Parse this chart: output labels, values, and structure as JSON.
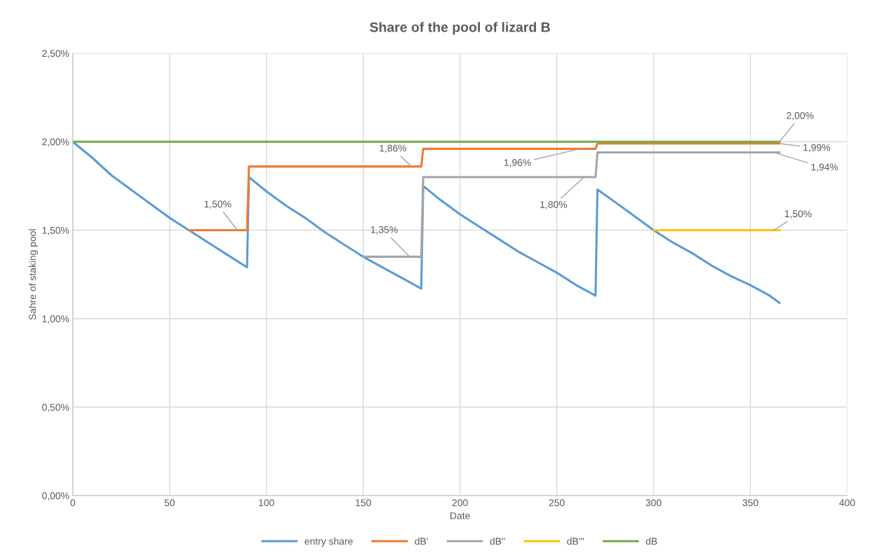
{
  "chart_data": {
    "type": "line",
    "title": "Share of the pool of lizard B",
    "xlabel": "Date",
    "ylabel": "Sahre of staking pool",
    "xlim": [
      0,
      400
    ],
    "xticks": [
      0,
      50,
      100,
      150,
      200,
      250,
      300,
      350,
      400
    ],
    "ylim": [
      0,
      2.5
    ],
    "yticks": [
      {
        "value": 0,
        "label": "0,00%"
      },
      {
        "value": 0.5,
        "label": "0,50%"
      },
      {
        "value": 1,
        "label": "1,00%"
      },
      {
        "value": 1.5,
        "label": "1,50%"
      },
      {
        "value": 2,
        "label": "2,00%"
      },
      {
        "value": 2.5,
        "label": "2,50%"
      }
    ],
    "grid": true,
    "legend": "bottom",
    "marker": "none",
    "line_style": "solid",
    "series": [
      {
        "name": "entry share",
        "color": "#5b9bd5",
        "x": [
          0,
          10,
          20,
          30,
          40,
          50,
          60,
          70,
          80,
          90,
          91,
          100,
          110,
          120,
          130,
          140,
          150,
          160,
          170,
          180,
          181,
          190,
          200,
          210,
          220,
          230,
          240,
          250,
          260,
          270,
          271,
          280,
          290,
          300,
          310,
          320,
          330,
          340,
          350,
          360,
          365
        ],
        "values": [
          2.0,
          1.91,
          1.81,
          1.73,
          1.65,
          1.57,
          1.5,
          1.43,
          1.36,
          1.29,
          1.8,
          1.72,
          1.64,
          1.57,
          1.49,
          1.42,
          1.35,
          1.29,
          1.23,
          1.17,
          1.75,
          1.67,
          1.59,
          1.52,
          1.45,
          1.38,
          1.32,
          1.26,
          1.19,
          1.13,
          1.73,
          1.66,
          1.58,
          1.5,
          1.43,
          1.37,
          1.3,
          1.24,
          1.19,
          1.13,
          1.09
        ]
      },
      {
        "name": "dB'",
        "color": "#ed7d31",
        "x": [
          60,
          90,
          91,
          180,
          181,
          270,
          271,
          365
        ],
        "values": [
          1.5,
          1.5,
          1.86,
          1.86,
          1.96,
          1.96,
          1.99,
          1.99
        ]
      },
      {
        "name": "dB''",
        "color": "#a5a5a5",
        "x": [
          150,
          180,
          181,
          270,
          271,
          365
        ],
        "values": [
          1.35,
          1.35,
          1.8,
          1.8,
          1.94,
          1.94
        ]
      },
      {
        "name": "dB'''",
        "color": "#ffc000",
        "x": [
          300,
          365
        ],
        "values": [
          1.5,
          1.5
        ]
      },
      {
        "name": "dB",
        "color": "#70ad47",
        "x": [
          0,
          365
        ],
        "values": [
          2.0,
          2.0
        ]
      }
    ],
    "annotations": [
      {
        "text": "1,50%",
        "x": 85,
        "y": 1.5
      },
      {
        "text": "1,86%",
        "x": 175,
        "y": 1.86
      },
      {
        "text": "1,35%",
        "x": 174,
        "y": 1.35
      },
      {
        "text": "1,96%",
        "x": 262,
        "y": 1.96
      },
      {
        "text": "1,80%",
        "x": 264,
        "y": 1.8
      },
      {
        "text": "2,00%",
        "x": 365,
        "y": 2.0
      },
      {
        "text": "1,99%",
        "x": 365,
        "y": 1.99
      },
      {
        "text": "1,94%",
        "x": 362,
        "y": 1.94
      },
      {
        "text": "1,50%",
        "x": 362,
        "y": 1.5
      }
    ]
  }
}
